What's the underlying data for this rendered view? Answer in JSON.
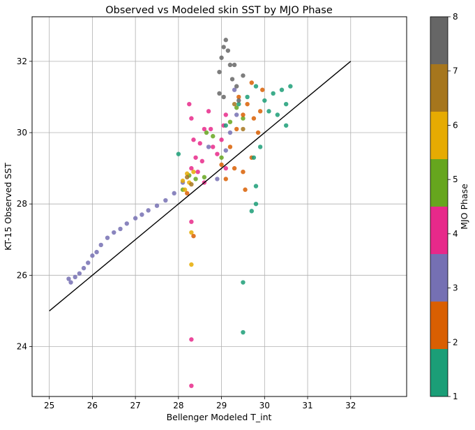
{
  "chart_data": {
    "type": "scatter",
    "title": "Observed vs Modeled skin SST by MJO Phase",
    "xlabel": "Bellenger Modeled T_int",
    "ylabel": "KT-15 Observed SST",
    "xlim": [
      24.6,
      33.3
    ],
    "ylim": [
      22.6,
      33.25
    ],
    "xticks": [
      "25",
      "26",
      "27",
      "28",
      "29",
      "30",
      "31",
      "32"
    ],
    "yticks": [
      "24",
      "26",
      "28",
      "30",
      "32"
    ],
    "grid": true,
    "reference_line": {
      "x": [
        25,
        32
      ],
      "y": [
        25,
        32
      ],
      "color": "#000000"
    },
    "colorbar": {
      "label": "MJO Phase",
      "ticks": [
        "1",
        "2",
        "3",
        "4",
        "5",
        "6",
        "7",
        "8"
      ],
      "range": [
        1,
        8
      ],
      "colors": [
        "#1b9e77",
        "#d95f02",
        "#7570b3",
        "#e7298a",
        "#66a61e",
        "#e6ab02",
        "#a6761d",
        "#666666"
      ]
    },
    "series": [
      {
        "phase": 3,
        "color": "#7570b3",
        "points": [
          [
            25.45,
            25.9
          ],
          [
            25.5,
            25.8
          ],
          [
            25.6,
            25.95
          ],
          [
            25.7,
            26.05
          ],
          [
            25.8,
            26.2
          ],
          [
            25.9,
            26.35
          ],
          [
            26.0,
            26.55
          ],
          [
            26.1,
            26.65
          ],
          [
            26.2,
            26.85
          ],
          [
            26.35,
            27.05
          ],
          [
            26.5,
            27.2
          ],
          [
            26.65,
            27.3
          ],
          [
            26.8,
            27.45
          ],
          [
            27.0,
            27.6
          ],
          [
            27.15,
            27.7
          ],
          [
            27.3,
            27.82
          ],
          [
            27.5,
            27.95
          ],
          [
            27.7,
            28.1
          ],
          [
            27.9,
            28.3
          ],
          [
            28.1,
            28.6
          ],
          [
            28.9,
            28.7
          ],
          [
            29.1,
            29.5
          ],
          [
            29.2,
            30.0
          ],
          [
            29.35,
            30.5
          ],
          [
            29.3,
            31.2
          ],
          [
            28.7,
            29.6
          ]
        ]
      },
      {
        "phase": 4,
        "color": "#e7298a",
        "points": [
          [
            28.25,
            30.8
          ],
          [
            28.3,
            30.4
          ],
          [
            28.35,
            29.8
          ],
          [
            28.4,
            29.3
          ],
          [
            28.5,
            29.7
          ],
          [
            28.6,
            30.1
          ],
          [
            28.7,
            30.6
          ],
          [
            28.75,
            30.1
          ],
          [
            28.8,
            29.6
          ],
          [
            28.9,
            29.4
          ],
          [
            29.0,
            29.8
          ],
          [
            29.05,
            30.2
          ],
          [
            29.1,
            30.5
          ],
          [
            28.55,
            29.2
          ],
          [
            28.45,
            28.9
          ],
          [
            28.3,
            29.0
          ],
          [
            29.1,
            29.0
          ],
          [
            28.6,
            28.6
          ],
          [
            28.3,
            24.2
          ],
          [
            28.3,
            22.9
          ],
          [
            28.3,
            27.5
          ]
        ]
      },
      {
        "phase": 5,
        "color": "#66a61e",
        "points": [
          [
            28.1,
            28.4
          ],
          [
            28.25,
            28.8
          ],
          [
            28.4,
            28.7
          ],
          [
            28.65,
            30.0
          ],
          [
            28.8,
            29.9
          ],
          [
            29.0,
            29.3
          ],
          [
            29.2,
            30.3
          ],
          [
            29.35,
            30.7
          ],
          [
            29.5,
            30.4
          ],
          [
            28.6,
            28.75
          ]
        ]
      },
      {
        "phase": 6,
        "color": "#e6ab02",
        "points": [
          [
            28.1,
            28.65
          ],
          [
            28.2,
            28.85
          ],
          [
            28.25,
            28.6
          ],
          [
            28.35,
            28.9
          ],
          [
            28.15,
            28.4
          ],
          [
            28.3,
            27.2
          ],
          [
            28.3,
            26.3
          ]
        ]
      },
      {
        "phase": 7,
        "color": "#a6761d",
        "points": [
          [
            28.2,
            28.75
          ],
          [
            28.3,
            28.55
          ],
          [
            29.3,
            30.8
          ],
          [
            29.5,
            30.1
          ]
        ]
      },
      {
        "phase": 2,
        "color": "#d95f02",
        "points": [
          [
            29.0,
            29.1
          ],
          [
            29.2,
            29.6
          ],
          [
            29.35,
            30.1
          ],
          [
            29.5,
            30.5
          ],
          [
            29.6,
            30.8
          ],
          [
            29.75,
            30.4
          ],
          [
            29.85,
            30.0
          ],
          [
            29.9,
            30.6
          ],
          [
            29.95,
            31.2
          ],
          [
            29.7,
            31.4
          ],
          [
            29.4,
            31.0
          ],
          [
            29.3,
            29.0
          ],
          [
            29.5,
            28.9
          ],
          [
            29.55,
            28.4
          ],
          [
            29.7,
            29.3
          ],
          [
            28.35,
            27.1
          ],
          [
            28.2,
            28.3
          ],
          [
            29.1,
            28.7
          ]
        ]
      },
      {
        "phase": 1,
        "color": "#1b9e77",
        "points": [
          [
            29.1,
            30.2
          ],
          [
            29.4,
            30.8
          ],
          [
            29.6,
            31.0
          ],
          [
            29.8,
            31.3
          ],
          [
            30.0,
            30.9
          ],
          [
            30.1,
            30.6
          ],
          [
            30.2,
            31.1
          ],
          [
            30.3,
            30.5
          ],
          [
            30.4,
            31.2
          ],
          [
            30.5,
            30.8
          ],
          [
            30.6,
            31.3
          ],
          [
            30.5,
            30.2
          ],
          [
            29.75,
            29.3
          ],
          [
            29.8,
            28.5
          ],
          [
            29.8,
            28.0
          ],
          [
            29.7,
            27.8
          ],
          [
            29.9,
            29.6
          ],
          [
            28.0,
            29.4
          ],
          [
            29.5,
            25.8
          ],
          [
            29.5,
            24.4
          ]
        ]
      },
      {
        "phase": 8,
        "color": "#666666",
        "points": [
          [
            28.95,
            31.7
          ],
          [
            29.0,
            32.1
          ],
          [
            29.05,
            32.4
          ],
          [
            29.1,
            32.6
          ],
          [
            29.15,
            32.3
          ],
          [
            29.2,
            31.9
          ],
          [
            29.25,
            31.5
          ],
          [
            29.35,
            31.3
          ],
          [
            28.95,
            31.1
          ],
          [
            29.05,
            31.0
          ],
          [
            29.3,
            31.9
          ],
          [
            29.5,
            31.6
          ],
          [
            29.4,
            30.9
          ]
        ]
      }
    ]
  }
}
